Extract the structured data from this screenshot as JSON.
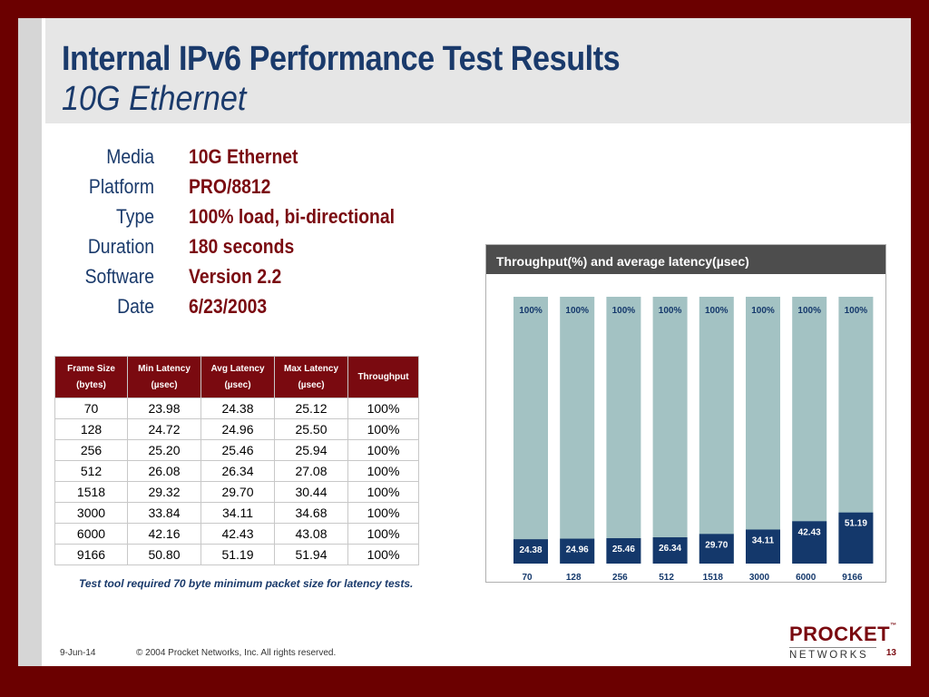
{
  "title": "Internal IPv6 Performance Test Results",
  "subtitle": "10G Ethernet",
  "info": [
    {
      "label": "Media",
      "value": "10G Ethernet"
    },
    {
      "label": "Platform",
      "value": "PRO/8812"
    },
    {
      "label": "Type",
      "value": "100% load, bi-directional"
    },
    {
      "label": "Duration",
      "value": "180 seconds"
    },
    {
      "label": "Software",
      "value": "Version 2.2"
    },
    {
      "label": "Date",
      "value": "6/23/2003"
    }
  ],
  "table": {
    "headers": [
      {
        "line1": "Frame Size",
        "line2": "(bytes)"
      },
      {
        "line1": "Min Latency",
        "line2": "(µsec)"
      },
      {
        "line1": "Avg Latency",
        "line2": "(µsec)"
      },
      {
        "line1": "Max Latency",
        "line2": "(µsec)"
      },
      {
        "line1": "Throughput",
        "line2": ""
      }
    ],
    "rows": [
      [
        "70",
        "23.98",
        "24.38",
        "25.12",
        "100%"
      ],
      [
        "128",
        "24.72",
        "24.96",
        "25.50",
        "100%"
      ],
      [
        "256",
        "25.20",
        "25.46",
        "25.94",
        "100%"
      ],
      [
        "512",
        "26.08",
        "26.34",
        "27.08",
        "100%"
      ],
      [
        "1518",
        "29.32",
        "29.70",
        "30.44",
        "100%"
      ],
      [
        "3000",
        "33.84",
        "34.11",
        "34.68",
        "100%"
      ],
      [
        "6000",
        "42.16",
        "42.43",
        "43.08",
        "100%"
      ],
      [
        "9166",
        "50.80",
        "51.19",
        "51.94",
        "100%"
      ]
    ]
  },
  "note": "Test tool required 70 byte minimum packet size for latency tests.",
  "chart_data": {
    "type": "bar",
    "title": "Throughput(%) and average latency(µsec)",
    "categories": [
      "70",
      "128",
      "256",
      "512",
      "1518",
      "3000",
      "6000",
      "9166"
    ],
    "series": [
      {
        "values": [
          100,
          100,
          100,
          100,
          100,
          100,
          100,
          100
        ],
        "labels": [
          "100%",
          "100%",
          "100%",
          "100%",
          "100%",
          "100%",
          "100%",
          "100%"
        ],
        "color": "#a3c2c3"
      },
      {
        "values": [
          24.38,
          24.96,
          25.46,
          26.34,
          29.7,
          34.11,
          42.43,
          51.19
        ],
        "labels": [
          "24.38",
          "24.96",
          "25.46",
          "26.34",
          "29.70",
          "34.11",
          "42.43",
          "51.19"
        ],
        "color": "#14386b"
      }
    ],
    "colors": {
      "header_bg": "#4d4d4d",
      "category_label": "#14386b"
    }
  },
  "footer": {
    "date": "9-Jun-14",
    "copyright": "© 2004 Procket Networks, Inc. All rights reserved.",
    "page": "13"
  },
  "logo": {
    "line1": "PROCKET",
    "tm": "™",
    "line2": "NETWORKS"
  },
  "colors": {
    "border": "#6b0000",
    "title": "#1a3a6b",
    "accent": "#7a0a10"
  }
}
